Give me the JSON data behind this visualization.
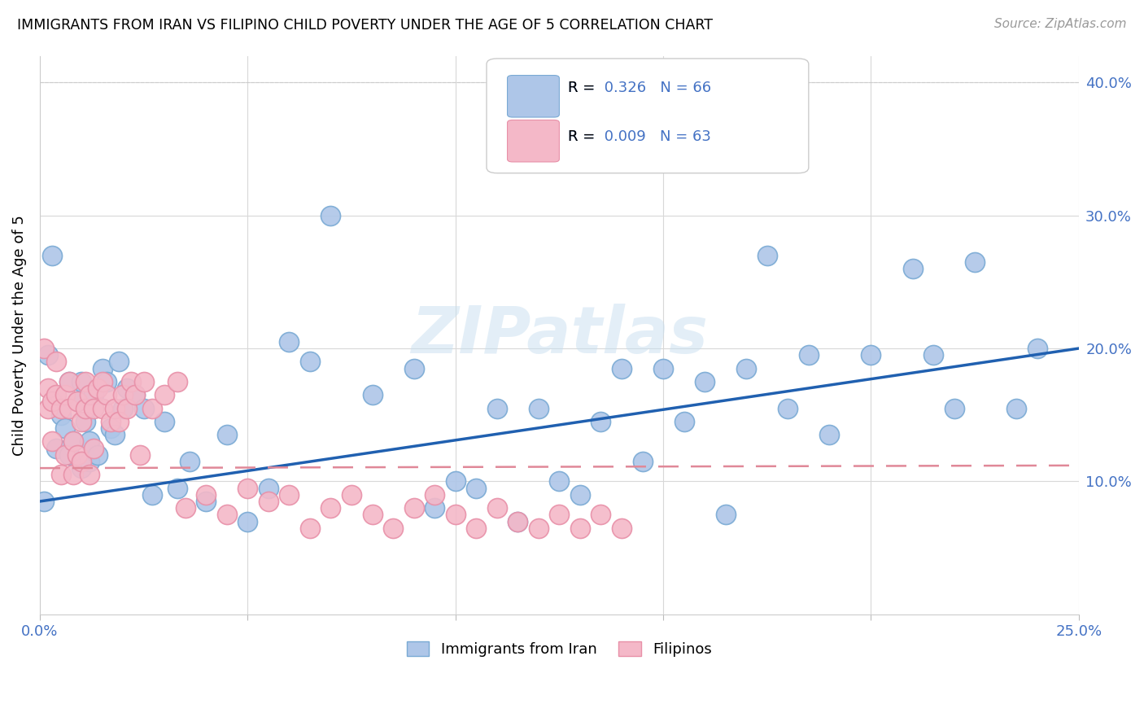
{
  "title": "IMMIGRANTS FROM IRAN VS FILIPINO CHILD POVERTY UNDER THE AGE OF 5 CORRELATION CHART",
  "source": "Source: ZipAtlas.com",
  "ylabel": "Child Poverty Under the Age of 5",
  "legend1_label": "Immigrants from Iran",
  "legend2_label": "Filipinos",
  "R1": "0.326",
  "N1": "66",
  "R2": "0.009",
  "N2": "63",
  "color_iran": "#aec6e8",
  "color_filipino": "#f4b8c8",
  "color_iran_edge": "#7aaad4",
  "color_filipino_edge": "#e890a8",
  "trend_iran_color": "#2060b0",
  "trend_filipino_color": "#e08898",
  "watermark": "ZIPatlas",
  "xlim": [
    0.0,
    0.25
  ],
  "ylim": [
    0.0,
    0.42
  ],
  "iran_x": [
    0.001,
    0.002,
    0.003,
    0.004,
    0.005,
    0.006,
    0.007,
    0.007,
    0.008,
    0.009,
    0.01,
    0.01,
    0.011,
    0.012,
    0.012,
    0.013,
    0.014,
    0.015,
    0.016,
    0.017,
    0.018,
    0.019,
    0.02,
    0.021,
    0.023,
    0.025,
    0.027,
    0.03,
    0.033,
    0.036,
    0.04,
    0.045,
    0.05,
    0.055,
    0.06,
    0.065,
    0.07,
    0.08,
    0.09,
    0.095,
    0.1,
    0.105,
    0.11,
    0.115,
    0.12,
    0.125,
    0.13,
    0.135,
    0.14,
    0.145,
    0.15,
    0.155,
    0.16,
    0.165,
    0.17,
    0.175,
    0.18,
    0.185,
    0.19,
    0.2,
    0.21,
    0.215,
    0.22,
    0.225,
    0.235,
    0.24
  ],
  "iran_y": [
    0.085,
    0.195,
    0.27,
    0.125,
    0.15,
    0.14,
    0.175,
    0.12,
    0.13,
    0.16,
    0.175,
    0.11,
    0.145,
    0.13,
    0.115,
    0.165,
    0.12,
    0.185,
    0.175,
    0.14,
    0.135,
    0.19,
    0.155,
    0.17,
    0.165,
    0.155,
    0.09,
    0.145,
    0.095,
    0.115,
    0.085,
    0.135,
    0.07,
    0.095,
    0.205,
    0.19,
    0.3,
    0.165,
    0.185,
    0.08,
    0.1,
    0.095,
    0.155,
    0.07,
    0.155,
    0.1,
    0.09,
    0.145,
    0.185,
    0.115,
    0.185,
    0.145,
    0.175,
    0.075,
    0.185,
    0.27,
    0.155,
    0.195,
    0.135,
    0.195,
    0.26,
    0.195,
    0.155,
    0.265,
    0.155,
    0.2
  ],
  "filipino_x": [
    0.001,
    0.002,
    0.002,
    0.003,
    0.003,
    0.004,
    0.004,
    0.005,
    0.005,
    0.006,
    0.006,
    0.007,
    0.007,
    0.008,
    0.008,
    0.009,
    0.009,
    0.01,
    0.01,
    0.011,
    0.011,
    0.012,
    0.012,
    0.013,
    0.013,
    0.014,
    0.015,
    0.015,
    0.016,
    0.017,
    0.018,
    0.019,
    0.02,
    0.021,
    0.022,
    0.023,
    0.024,
    0.025,
    0.027,
    0.03,
    0.033,
    0.035,
    0.04,
    0.045,
    0.05,
    0.055,
    0.06,
    0.065,
    0.07,
    0.075,
    0.08,
    0.085,
    0.09,
    0.095,
    0.1,
    0.105,
    0.11,
    0.115,
    0.12,
    0.125,
    0.13,
    0.135,
    0.14
  ],
  "filipino_y": [
    0.2,
    0.17,
    0.155,
    0.16,
    0.13,
    0.165,
    0.19,
    0.155,
    0.105,
    0.12,
    0.165,
    0.155,
    0.175,
    0.13,
    0.105,
    0.12,
    0.16,
    0.145,
    0.115,
    0.175,
    0.155,
    0.165,
    0.105,
    0.125,
    0.155,
    0.17,
    0.155,
    0.175,
    0.165,
    0.145,
    0.155,
    0.145,
    0.165,
    0.155,
    0.175,
    0.165,
    0.12,
    0.175,
    0.155,
    0.165,
    0.175,
    0.08,
    0.09,
    0.075,
    0.095,
    0.085,
    0.09,
    0.065,
    0.08,
    0.09,
    0.075,
    0.065,
    0.08,
    0.09,
    0.075,
    0.065,
    0.08,
    0.07,
    0.065,
    0.075,
    0.065,
    0.075,
    0.065
  ],
  "trend_iran_x0": 0.0,
  "trend_iran_y0": 0.085,
  "trend_iran_x1": 0.25,
  "trend_iran_y1": 0.2,
  "trend_fil_x0": 0.0,
  "trend_fil_y0": 0.11,
  "trend_fil_x1": 0.25,
  "trend_fil_y1": 0.112
}
